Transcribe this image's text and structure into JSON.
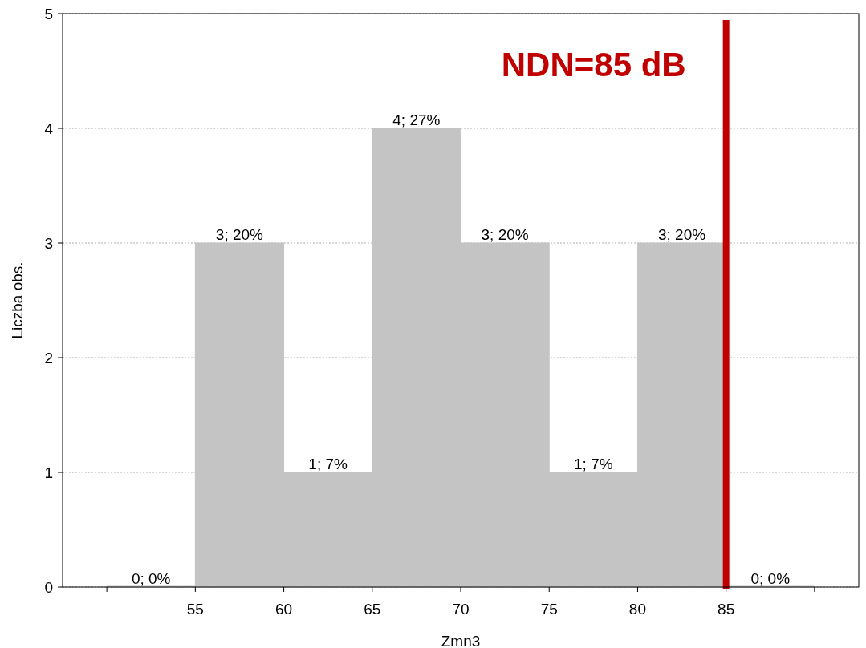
{
  "chart_data": {
    "type": "histogram",
    "xlabel": "Zmn3",
    "ylabel": "Liczba obs.",
    "bins": [
      50,
      55,
      60,
      65,
      70,
      75,
      80,
      85,
      90
    ],
    "values": [
      0,
      3,
      1,
      4,
      3,
      1,
      3,
      0
    ],
    "value_labels": [
      "0; 0%",
      "3; 20%",
      "1; 7%",
      "4; 27%",
      "3; 20%",
      "1; 7%",
      "3; 20%",
      "0; 0%"
    ],
    "color": "#c4c4c4",
    "xlim": [
      47.5,
      92.5
    ],
    "ylim": [
      0,
      5
    ],
    "xticks": [
      {
        "value": 50,
        "label": null
      },
      55,
      60,
      65,
      70,
      75,
      80,
      85,
      {
        "value": 90,
        "label": null
      }
    ],
    "yticks": [
      0,
      1,
      2,
      3,
      4,
      5
    ],
    "grid": "y",
    "ref_lines": [
      {
        "axis": "x",
        "value": 85,
        "label": "NDN=85 dB",
        "color": "#c00000"
      }
    ]
  }
}
